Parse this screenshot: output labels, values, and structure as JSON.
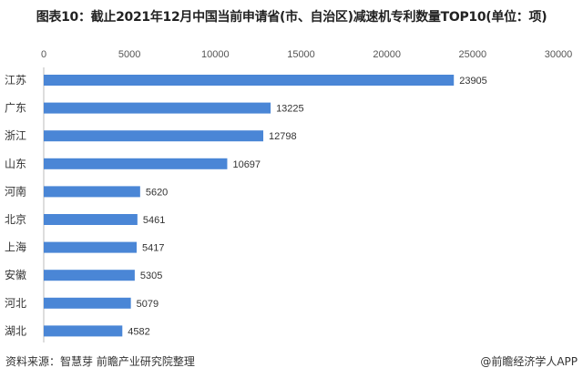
{
  "chart_data": {
    "type": "bar",
    "orientation": "horizontal",
    "title": "图表10：截止2021年12月中国当前申请省(市、自治区)减速机专利数量TOP10(单位：项)",
    "categories": [
      "江苏",
      "广东",
      "浙江",
      "山东",
      "河南",
      "北京",
      "上海",
      "安徽",
      "河北",
      "湖北"
    ],
    "values": [
      23905,
      13225,
      12798,
      10697,
      5620,
      5461,
      5417,
      5305,
      5079,
      4582
    ],
    "xlim": [
      0,
      30000
    ],
    "xticks": [
      0,
      5000,
      10000,
      15000,
      20000,
      25000,
      30000
    ],
    "xaxis_position": "top",
    "grid": false,
    "bar_color": "#4a86d6"
  },
  "footer": {
    "source": "资料来源：智慧芽 前瞻产业研究院整理",
    "brand": "@前瞻经济学人APP"
  }
}
